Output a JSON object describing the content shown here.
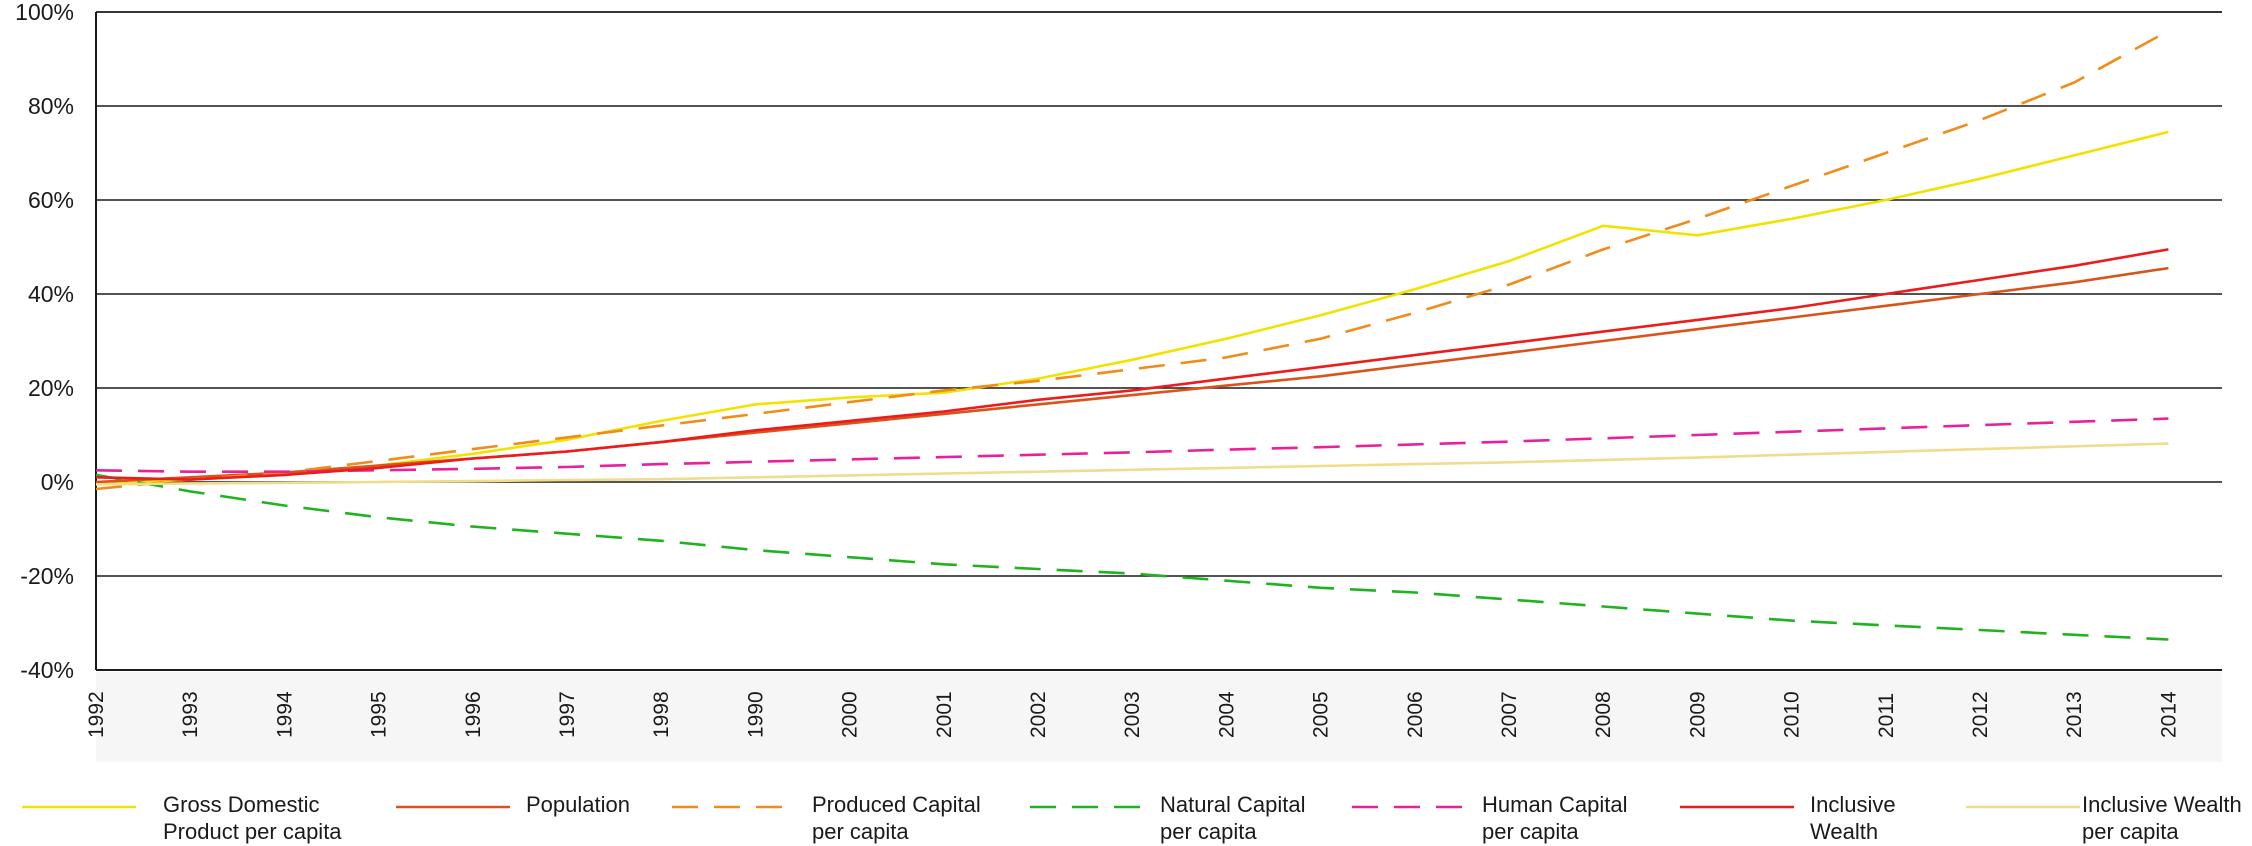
{
  "chart_data": {
    "type": "line",
    "title": "",
    "xlabel": "",
    "ylabel": "",
    "ylim": [
      -40,
      100
    ],
    "y_ticks": [
      "100%",
      "80%",
      "60%",
      "40%",
      "20%",
      "0%",
      "-20%",
      "-40%"
    ],
    "y_tick_values": [
      100,
      80,
      60,
      40,
      20,
      0,
      -20,
      -40
    ],
    "categories": [
      "1992",
      "1993",
      "1994",
      "1995",
      "1996",
      "1997",
      "1998",
      "1990",
      "2000",
      "2001",
      "2002",
      "2003",
      "2004",
      "2005",
      "2006",
      "2007",
      "2008",
      "2009",
      "2010",
      "2011",
      "2012",
      "2013",
      "2014"
    ],
    "grid": "horizontal",
    "legend_position": "bottom",
    "series": [
      {
        "name_lines": [
          "Gross Domestic",
          "Product per capita"
        ],
        "color": "#f2e200",
        "dash": "solid",
        "values": [
          -0.5,
          0.5,
          1.5,
          3.5,
          6,
          9,
          13,
          16.5,
          18,
          19,
          22,
          26,
          30.5,
          35.5,
          41,
          47,
          54.5,
          52.5,
          56,
          60,
          64.5,
          69.5,
          74.5
        ]
      },
      {
        "name_lines": [
          "Population"
        ],
        "color": "#d9541a",
        "dash": "solid",
        "values": [
          0,
          1,
          2,
          3.5,
          5,
          6.5,
          8.5,
          10.5,
          12.5,
          14.5,
          16.5,
          18.5,
          20.5,
          22.5,
          25,
          27.5,
          30,
          32.5,
          35,
          37.5,
          40,
          42.5,
          45.5
        ]
      },
      {
        "name_lines": [
          "Produced Capital",
          "per capita"
        ],
        "color": "#f08c1a",
        "dash": "dashed",
        "values": [
          -1.5,
          0.5,
          2,
          4.5,
          7,
          9.5,
          12,
          14.5,
          17,
          19.5,
          21.5,
          24,
          26.5,
          30.5,
          36,
          42,
          49.5,
          56,
          63,
          70,
          77,
          85,
          96
        ]
      },
      {
        "name_lines": [
          "Natural Capital",
          "per capita"
        ],
        "color": "#1fb31f",
        "dash": "dashed",
        "values": [
          1.5,
          -2,
          -5,
          -7.5,
          -9.5,
          -11,
          -12.5,
          -14.5,
          -16,
          -17.5,
          -18.5,
          -19.5,
          -21,
          -22.5,
          -23.5,
          -25,
          -26.5,
          -28,
          -29.5,
          -30.5,
          -31.5,
          -32.5,
          -33.5
        ]
      },
      {
        "name_lines": [
          "Human Capital",
          "per capita"
        ],
        "color": "#e8209a",
        "dash": "dashed",
        "values": [
          2.5,
          2.2,
          2.2,
          2.5,
          2.8,
          3.2,
          3.8,
          4.3,
          4.8,
          5.3,
          5.8,
          6.3,
          6.9,
          7.4,
          8,
          8.6,
          9.3,
          10,
          10.7,
          11.4,
          12.1,
          12.8,
          13.5
        ]
      },
      {
        "name_lines": [
          "Inclusive",
          "Wealth"
        ],
        "color": "#ec1c1c",
        "dash": "solid",
        "values": [
          1,
          0.5,
          1.5,
          3,
          5,
          6.5,
          8.5,
          11,
          13,
          15,
          17.5,
          19.5,
          22,
          24.5,
          27,
          29.5,
          32,
          34.5,
          37,
          40,
          43,
          46,
          49.5
        ]
      },
      {
        "name_lines": [
          "Inclusive Wealth",
          "per capita"
        ],
        "color": "#f0dc8c",
        "dash": "solid",
        "values": [
          -0.5,
          -0.3,
          -0.2,
          0,
          0.2,
          0.4,
          0.6,
          1,
          1.4,
          1.8,
          2.2,
          2.6,
          3,
          3.4,
          3.8,
          4.2,
          4.7,
          5.2,
          5.8,
          6.4,
          7,
          7.6,
          8.2
        ]
      }
    ]
  }
}
